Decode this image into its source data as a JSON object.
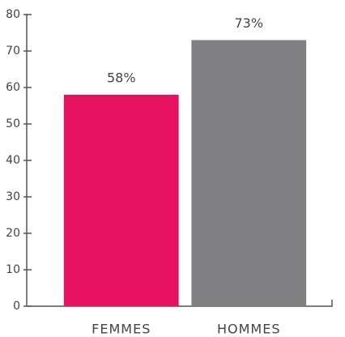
{
  "chart_data": {
    "type": "bar",
    "categories": [
      "FEMMES",
      "HOMMES"
    ],
    "values": [
      58,
      73
    ],
    "value_labels": [
      "58%",
      "73%"
    ],
    "colors": [
      "#e6115f",
      "#808083"
    ],
    "ylim": [
      0,
      80
    ],
    "yticks": [
      0,
      10,
      20,
      30,
      40,
      50,
      60,
      70,
      80
    ]
  }
}
